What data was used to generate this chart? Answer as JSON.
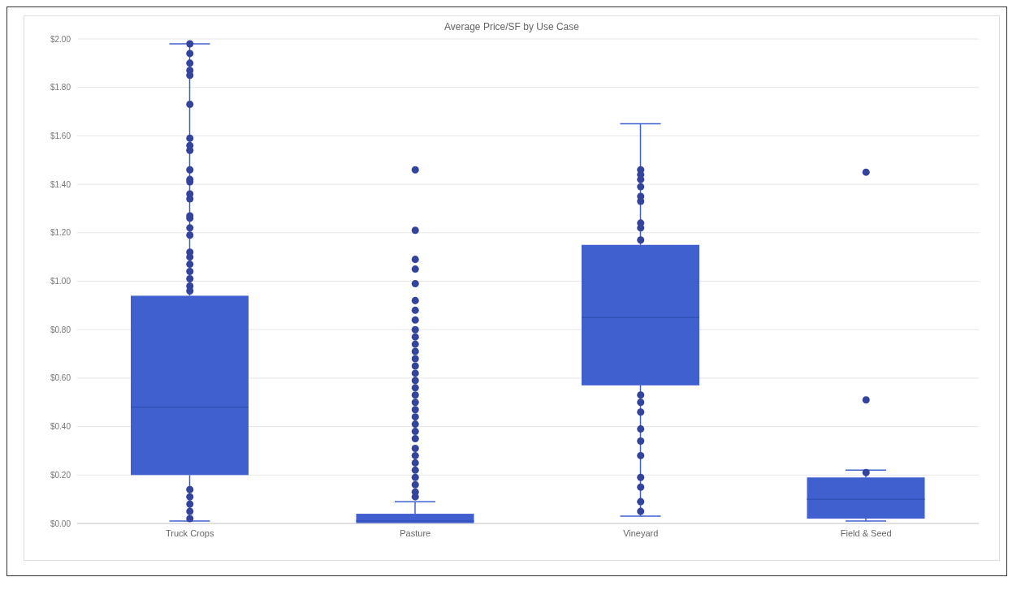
{
  "chart_data": {
    "type": "box",
    "title": "Average Price/SF by Use Case",
    "categories": [
      "Truck Crops",
      "Pasture",
      "Vineyard",
      "Field & Seed"
    ],
    "color": "#4060d0",
    "boxes": [
      {
        "low": 0.01,
        "q1": 0.2,
        "median": 0.48,
        "q3": 0.94,
        "high": 1.98
      },
      {
        "low": 0.0,
        "q1": 0.0,
        "median": 0.01,
        "q3": 0.04,
        "high": 0.09,
        "outliers": [
          1.46,
          1.21,
          1.09,
          1.05,
          0.99,
          0.92,
          0.88,
          0.84,
          0.8,
          0.77,
          0.74,
          0.71,
          0.68,
          0.65,
          0.62,
          0.59,
          0.56,
          0.53,
          0.5,
          0.47,
          0.44,
          0.41,
          0.38,
          0.35,
          0.31,
          0.28,
          0.25,
          0.22,
          0.19,
          0.16,
          0.13,
          0.11
        ]
      },
      {
        "low": 0.03,
        "q1": 0.57,
        "median": 0.85,
        "q3": 1.15,
        "high": 1.65
      },
      {
        "low": 0.01,
        "q1": 0.02,
        "median": 0.1,
        "q3": 0.19,
        "high": 0.22,
        "outliers": [
          1.45,
          0.51
        ]
      }
    ],
    "series": [
      {
        "type": "scatter",
        "color": "#34449c",
        "x": [
          "Truck Crops",
          "Truck Crops",
          "Truck Crops",
          "Truck Crops",
          "Truck Crops",
          "Truck Crops",
          "Truck Crops",
          "Truck Crops",
          "Truck Crops",
          "Truck Crops",
          "Truck Crops",
          "Truck Crops",
          "Truck Crops",
          "Truck Crops",
          "Truck Crops",
          "Truck Crops",
          "Truck Crops",
          "Truck Crops",
          "Truck Crops",
          "Truck Crops",
          "Truck Crops",
          "Truck Crops",
          "Truck Crops",
          "Truck Crops",
          "Truck Crops",
          "Truck Crops",
          "Truck Crops",
          "Truck Crops",
          "Truck Crops",
          "Truck Crops",
          "Vineyard",
          "Vineyard",
          "Vineyard",
          "Vineyard",
          "Vineyard",
          "Vineyard",
          "Vineyard",
          "Vineyard",
          "Vineyard",
          "Vineyard",
          "Vineyard",
          "Vineyard",
          "Vineyard",
          "Vineyard",
          "Vineyard",
          "Vineyard",
          "Vineyard",
          "Vineyard",
          "Vineyard",
          "Field & Seed"
        ],
        "values": [
          1.98,
          1.94,
          1.9,
          1.87,
          1.85,
          1.73,
          1.59,
          1.56,
          1.54,
          1.46,
          1.42,
          1.41,
          1.36,
          1.34,
          1.27,
          1.26,
          1.22,
          1.19,
          1.12,
          1.1,
          1.07,
          1.04,
          1.01,
          0.98,
          0.96,
          0.14,
          0.11,
          0.08,
          0.05,
          0.02,
          1.46,
          1.44,
          1.42,
          1.39,
          1.35,
          1.33,
          1.24,
          1.22,
          1.17,
          0.53,
          0.5,
          0.46,
          0.39,
          0.34,
          0.28,
          0.19,
          0.15,
          0.09,
          0.05,
          0.21
        ]
      }
    ],
    "marker": "circle",
    "ylim": [
      0,
      2
    ],
    "yticks": [
      {
        "value": 0,
        "label": "$0.00"
      },
      {
        "value": 0.2,
        "label": "$0.20"
      },
      {
        "value": 0.4,
        "label": "$0.40"
      },
      {
        "value": 0.6,
        "label": "$0.60"
      },
      {
        "value": 0.8,
        "label": "$0.80"
      },
      {
        "value": 1,
        "label": "$1.00"
      },
      {
        "value": 1.2,
        "label": "$1.20"
      },
      {
        "value": 1.4,
        "label": "$1.40"
      },
      {
        "value": 1.6,
        "label": "$1.60"
      },
      {
        "value": 1.8,
        "label": "$1.80"
      },
      {
        "value": 2,
        "label": "$2.00"
      }
    ],
    "grid": "y"
  }
}
